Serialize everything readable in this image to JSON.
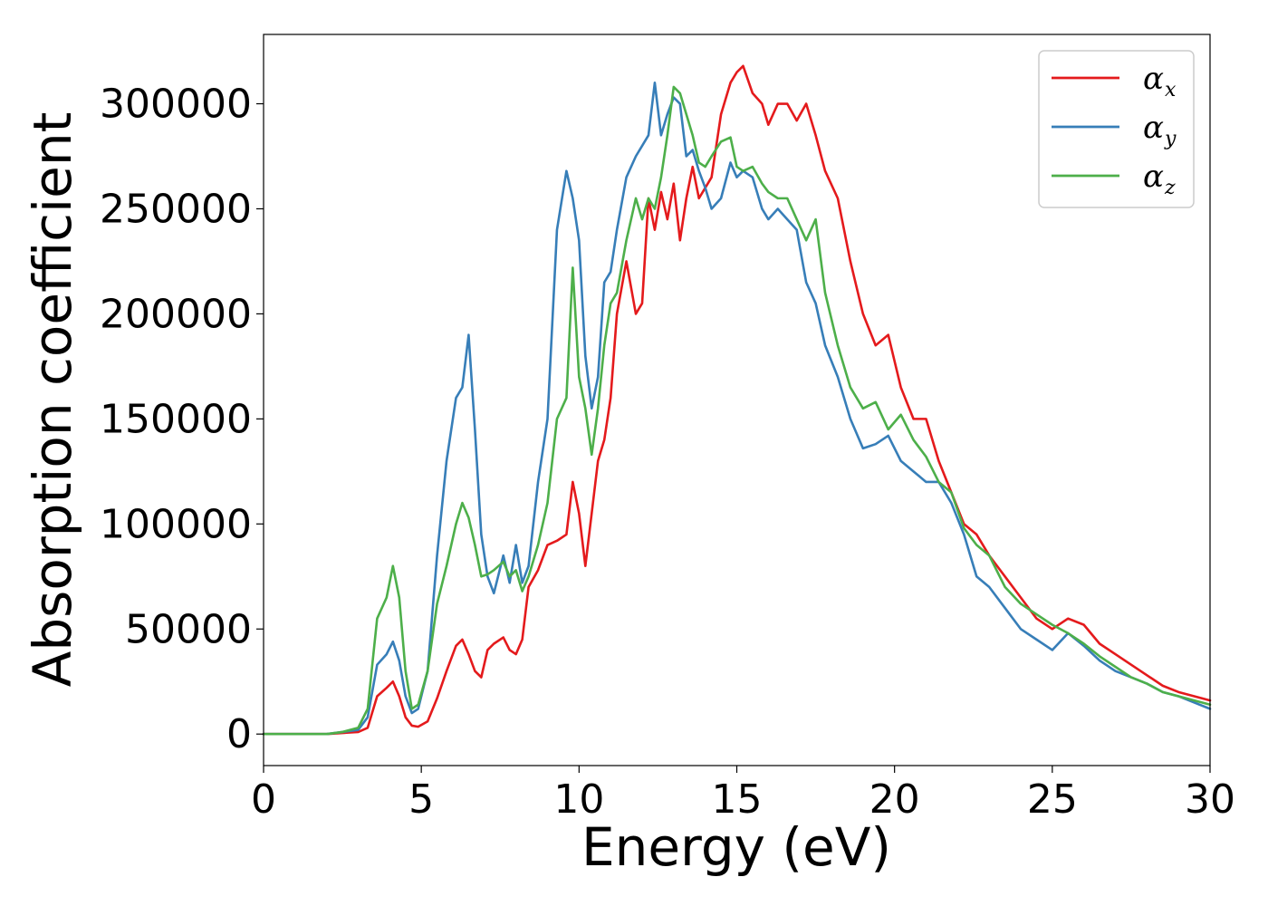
{
  "chart_data": {
    "type": "line",
    "xlabel": "Energy (eV)",
    "ylabel": "Absorption coefficient",
    "xlim": [
      0,
      30
    ],
    "ylim": [
      -15000,
      333000
    ],
    "xticks": [
      0,
      5,
      10,
      15,
      20,
      25,
      30
    ],
    "yticks": [
      0,
      50000,
      100000,
      150000,
      200000,
      250000,
      300000
    ],
    "xtick_labels": [
      "0",
      "5",
      "10",
      "15",
      "20",
      "25",
      "30"
    ],
    "ytick_labels": [
      "0",
      "50000",
      "100000",
      "150000",
      "200000",
      "250000",
      "300000"
    ],
    "grid": false,
    "legend_position": "top-right",
    "series": [
      {
        "name": "α",
        "subscript": "x",
        "color": "#e41a1c",
        "x": [
          0,
          0.5,
          1,
          1.5,
          2,
          2.5,
          3,
          3.3,
          3.6,
          3.9,
          4.1,
          4.3,
          4.5,
          4.7,
          4.9,
          5.2,
          5.5,
          5.8,
          6.1,
          6.3,
          6.5,
          6.7,
          6.9,
          7.1,
          7.3,
          7.6,
          7.8,
          8,
          8.2,
          8.4,
          8.7,
          9,
          9.3,
          9.6,
          9.8,
          10,
          10.2,
          10.4,
          10.6,
          10.8,
          11,
          11.2,
          11.5,
          11.8,
          12,
          12.2,
          12.4,
          12.6,
          12.8,
          13,
          13.2,
          13.4,
          13.6,
          13.8,
          14,
          14.2,
          14.5,
          14.8,
          15,
          15.2,
          15.5,
          15.8,
          16,
          16.3,
          16.6,
          16.9,
          17.2,
          17.5,
          17.8,
          18.2,
          18.6,
          19,
          19.4,
          19.8,
          20.2,
          20.6,
          21,
          21.4,
          21.8,
          22.2,
          22.6,
          23,
          23.5,
          24,
          24.5,
          25,
          25.5,
          26,
          26.5,
          27,
          27.5,
          28,
          28.5,
          29,
          29.5,
          30
        ],
        "y": [
          0,
          0,
          0,
          0,
          0,
          500,
          1000,
          3000,
          18000,
          22000,
          25000,
          18000,
          8000,
          4000,
          3500,
          6000,
          17000,
          30000,
          42000,
          45000,
          38000,
          30000,
          27000,
          40000,
          43000,
          46000,
          40000,
          38000,
          45000,
          70000,
          78000,
          90000,
          92000,
          95000,
          120000,
          105000,
          80000,
          105000,
          130000,
          140000,
          160000,
          200000,
          225000,
          200000,
          205000,
          255000,
          240000,
          258000,
          245000,
          262000,
          235000,
          255000,
          270000,
          255000,
          260000,
          265000,
          295000,
          310000,
          315000,
          318000,
          305000,
          300000,
          290000,
          300000,
          300000,
          292000,
          300000,
          285000,
          268000,
          255000,
          225000,
          200000,
          185000,
          190000,
          165000,
          150000,
          150000,
          130000,
          115000,
          100000,
          95000,
          85000,
          75000,
          65000,
          55000,
          50000,
          55000,
          52000,
          43000,
          38000,
          33000,
          28000,
          23000,
          20000,
          18000,
          16000
        ]
      },
      {
        "name": "α",
        "subscript": "y",
        "color": "#377eb8",
        "x": [
          0,
          0.5,
          1,
          1.5,
          2,
          2.5,
          3,
          3.3,
          3.6,
          3.9,
          4.1,
          4.3,
          4.5,
          4.7,
          4.9,
          5.2,
          5.5,
          5.8,
          6.1,
          6.3,
          6.5,
          6.7,
          6.9,
          7.1,
          7.3,
          7.6,
          7.8,
          8,
          8.2,
          8.4,
          8.7,
          9,
          9.3,
          9.6,
          9.8,
          10,
          10.2,
          10.4,
          10.6,
          10.8,
          11,
          11.2,
          11.5,
          11.8,
          12,
          12.2,
          12.4,
          12.6,
          12.8,
          13,
          13.2,
          13.4,
          13.6,
          13.8,
          14,
          14.2,
          14.5,
          14.8,
          15,
          15.2,
          15.5,
          15.8,
          16,
          16.3,
          16.6,
          16.9,
          17.2,
          17.5,
          17.8,
          18.2,
          18.6,
          19,
          19.4,
          19.8,
          20.2,
          20.6,
          21,
          21.4,
          21.8,
          22.2,
          22.6,
          23,
          23.5,
          24,
          24.5,
          25,
          25.5,
          26,
          26.5,
          27,
          27.5,
          28,
          28.5,
          29,
          29.5,
          30
        ],
        "y": [
          0,
          0,
          0,
          0,
          0,
          1000,
          2000,
          8000,
          33000,
          38000,
          44000,
          35000,
          18000,
          10000,
          12000,
          30000,
          85000,
          130000,
          160000,
          165000,
          190000,
          145000,
          95000,
          75000,
          67000,
          85000,
          72000,
          90000,
          72000,
          80000,
          120000,
          150000,
          240000,
          268000,
          255000,
          235000,
          180000,
          155000,
          170000,
          215000,
          220000,
          240000,
          265000,
          275000,
          280000,
          285000,
          310000,
          285000,
          295000,
          303000,
          300000,
          275000,
          278000,
          268000,
          260000,
          250000,
          255000,
          272000,
          265000,
          268000,
          265000,
          250000,
          245000,
          250000,
          245000,
          240000,
          215000,
          205000,
          185000,
          170000,
          150000,
          136000,
          138000,
          142000,
          130000,
          125000,
          120000,
          120000,
          110000,
          95000,
          75000,
          70000,
          60000,
          50000,
          45000,
          40000,
          48000,
          42000,
          35000,
          30000,
          27000,
          24000,
          20000,
          18000,
          15000,
          12000
        ]
      },
      {
        "name": "α",
        "subscript": "z",
        "color": "#4daf4a",
        "x": [
          0,
          0.5,
          1,
          1.5,
          2,
          2.5,
          3,
          3.3,
          3.6,
          3.9,
          4.1,
          4.3,
          4.5,
          4.7,
          4.9,
          5.2,
          5.5,
          5.8,
          6.1,
          6.3,
          6.5,
          6.7,
          6.9,
          7.1,
          7.3,
          7.6,
          7.8,
          8,
          8.2,
          8.4,
          8.7,
          9,
          9.3,
          9.6,
          9.8,
          10,
          10.2,
          10.4,
          10.6,
          10.8,
          11,
          11.2,
          11.5,
          11.8,
          12,
          12.2,
          12.4,
          12.6,
          12.8,
          13,
          13.2,
          13.4,
          13.6,
          13.8,
          14,
          14.2,
          14.5,
          14.8,
          15,
          15.2,
          15.5,
          15.8,
          16,
          16.3,
          16.6,
          16.9,
          17.2,
          17.5,
          17.8,
          18.2,
          18.6,
          19,
          19.4,
          19.8,
          20.2,
          20.6,
          21,
          21.4,
          21.8,
          22.2,
          22.6,
          23,
          23.5,
          24,
          24.5,
          25,
          25.5,
          26,
          26.5,
          27,
          27.5,
          28,
          28.5,
          29,
          29.5,
          30
        ],
        "y": [
          0,
          0,
          0,
          0,
          0,
          1000,
          3000,
          12000,
          55000,
          65000,
          80000,
          65000,
          30000,
          12000,
          14000,
          30000,
          62000,
          80000,
          100000,
          110000,
          103000,
          90000,
          75000,
          76000,
          78000,
          82000,
          75000,
          78000,
          68000,
          75000,
          90000,
          110000,
          150000,
          160000,
          222000,
          170000,
          155000,
          133000,
          155000,
          185000,
          205000,
          210000,
          235000,
          255000,
          245000,
          255000,
          250000,
          265000,
          285000,
          308000,
          305000,
          295000,
          285000,
          272000,
          270000,
          275000,
          282000,
          284000,
          270000,
          268000,
          270000,
          262000,
          258000,
          255000,
          255000,
          245000,
          235000,
          245000,
          210000,
          185000,
          165000,
          155000,
          158000,
          145000,
          152000,
          140000,
          132000,
          120000,
          115000,
          98000,
          90000,
          85000,
          70000,
          62000,
          57000,
          52000,
          48000,
          43000,
          37000,
          32000,
          27000,
          24000,
          20000,
          18000,
          16000,
          14000
        ]
      }
    ]
  }
}
